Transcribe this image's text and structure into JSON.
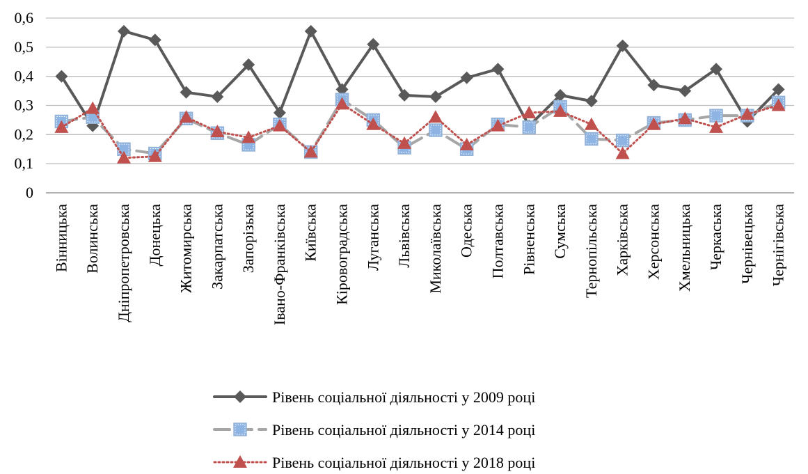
{
  "chart_data": {
    "type": "line",
    "categories": [
      "Вінницька",
      "Волинська",
      "Дніпропетровська",
      "Донецька",
      "Житомирська",
      "Закарпатська",
      "Запорізька",
      "Івано-Франківська",
      "Київська",
      "Кіровоградська",
      "Луганська",
      "Львівська",
      "Миколаївська",
      "Одеська",
      "Полтавська",
      "Рівненська",
      "Сумська",
      "Тернопільська",
      "Харківська",
      "Херсонська",
      "Хмельницька",
      "Черкаська",
      "Чернівецька",
      "Чернігівська"
    ],
    "yticks": [
      "0",
      "0,1",
      "0,2",
      "0,3",
      "0,4",
      "0,5",
      "0,6"
    ],
    "ylim": [
      0,
      0.6
    ],
    "grid": true,
    "legend_position": "bottom",
    "series": [
      {
        "name": "Рівень соціальної діяльності у 2009 році",
        "color": "#595959",
        "marker": "diamond",
        "line": "solid",
        "values": [
          0.4,
          0.23,
          0.555,
          0.525,
          0.345,
          0.33,
          0.44,
          0.275,
          0.555,
          0.355,
          0.51,
          0.335,
          0.33,
          0.395,
          0.425,
          0.23,
          0.335,
          0.315,
          0.505,
          0.37,
          0.35,
          0.425,
          0.245,
          0.355
        ]
      },
      {
        "name": "Рівень соціальної діяльності у 2014 році",
        "color": "#a6a6a6",
        "marker": "square",
        "line": "dash",
        "values": [
          0.245,
          0.26,
          0.15,
          0.135,
          0.255,
          0.205,
          0.165,
          0.235,
          0.14,
          0.32,
          0.25,
          0.155,
          0.215,
          0.15,
          0.235,
          0.225,
          0.295,
          0.185,
          0.18,
          0.24,
          0.25,
          0.265,
          0.265,
          0.31
        ]
      },
      {
        "name": "Рівень соціальної діяльності у 2018 році",
        "color": "#c0504d",
        "marker": "triangle",
        "line": "dot",
        "values": [
          0.225,
          0.29,
          0.12,
          0.125,
          0.26,
          0.21,
          0.19,
          0.23,
          0.14,
          0.305,
          0.235,
          0.17,
          0.26,
          0.165,
          0.23,
          0.275,
          0.28,
          0.235,
          0.135,
          0.235,
          0.255,
          0.225,
          0.27,
          0.3
        ]
      }
    ]
  }
}
